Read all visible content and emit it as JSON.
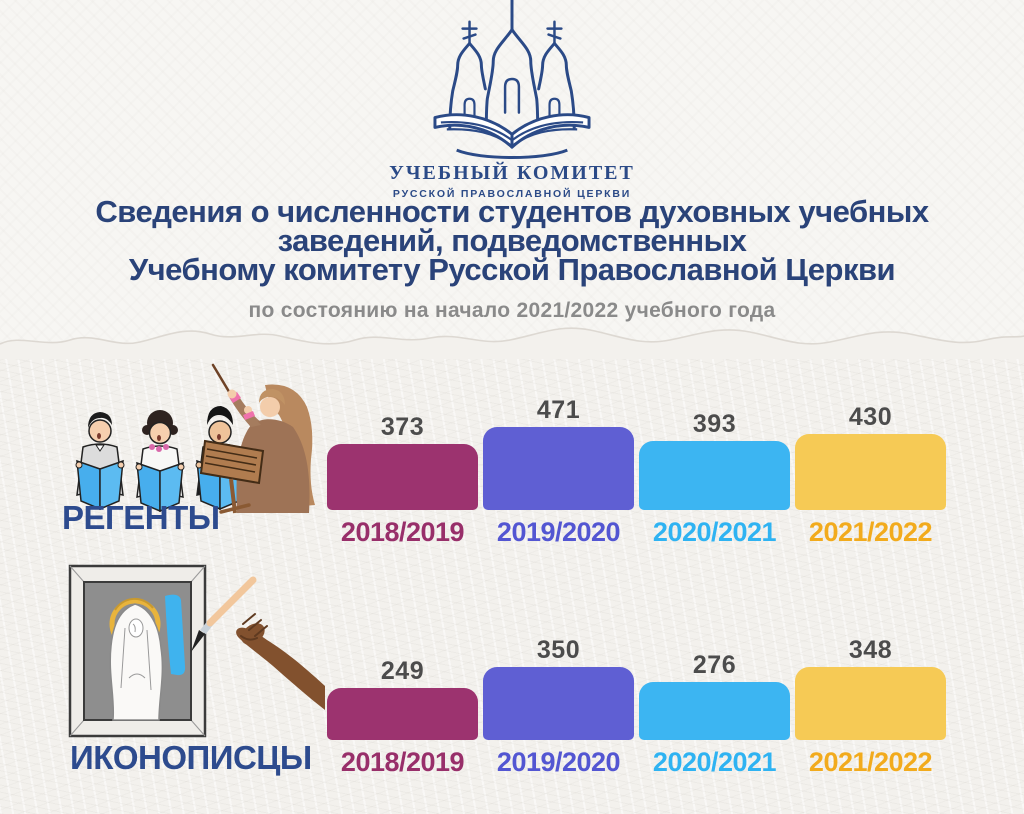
{
  "logo": {
    "church_icon": "orthodox-church-on-open-book-icon",
    "org_name": "УЧЕБНЫЙ КОМИТЕТ",
    "org_subname": "РУССКОЙ ПРАВОСЛАВНОЙ ЦЕРКВИ",
    "color": "#2b4a87"
  },
  "header": {
    "title_lines": [
      "Сведения о численности студентов духовных учебных",
      "заведений, подведомственных",
      "Учебному комитету Русской Православной Церкви"
    ],
    "subtitle": "по состоянию на начало 2021/2022 учебного года",
    "title_color": "#2a4379",
    "subtitle_color": "#8a8a8a"
  },
  "chart_data": [
    {
      "type": "bar",
      "title": "РЕГЕНТЫ",
      "title_color": "#2d4b8e",
      "illustration": "choir-singers-and-conductor-illustration",
      "categories": [
        "2018/2019",
        "2019/2020",
        "2020/2021",
        "2021/2022"
      ],
      "values": [
        373,
        471,
        393,
        430
      ],
      "bar_colors": [
        "#9c336f",
        "#5f5fd3",
        "#3cb5f2",
        "#f6ca55"
      ],
      "category_colors": [
        "#982f6a",
        "#5356d2",
        "#2fb3f2",
        "#f2ab1d"
      ],
      "value_color": "#4c4c4c",
      "xlabel": "",
      "ylabel": "",
      "grid": false,
      "legend": false
    },
    {
      "type": "bar",
      "title": "ИКОНОПИСЦЫ",
      "title_color": "#2d4b8e",
      "illustration": "icon-painting-hand-illustration",
      "categories": [
        "2018/2019",
        "2019/2020",
        "2020/2021",
        "2021/2022"
      ],
      "values": [
        249,
        350,
        276,
        348
      ],
      "bar_colors": [
        "#9c336f",
        "#5f5fd3",
        "#3cb5f2",
        "#f6ca55"
      ],
      "category_colors": [
        "#982f6a",
        "#5356d2",
        "#2fb3f2",
        "#f2ab1d"
      ],
      "value_color": "#4c4c4c",
      "xlabel": "",
      "ylabel": "",
      "grid": false,
      "legend": false
    }
  ]
}
